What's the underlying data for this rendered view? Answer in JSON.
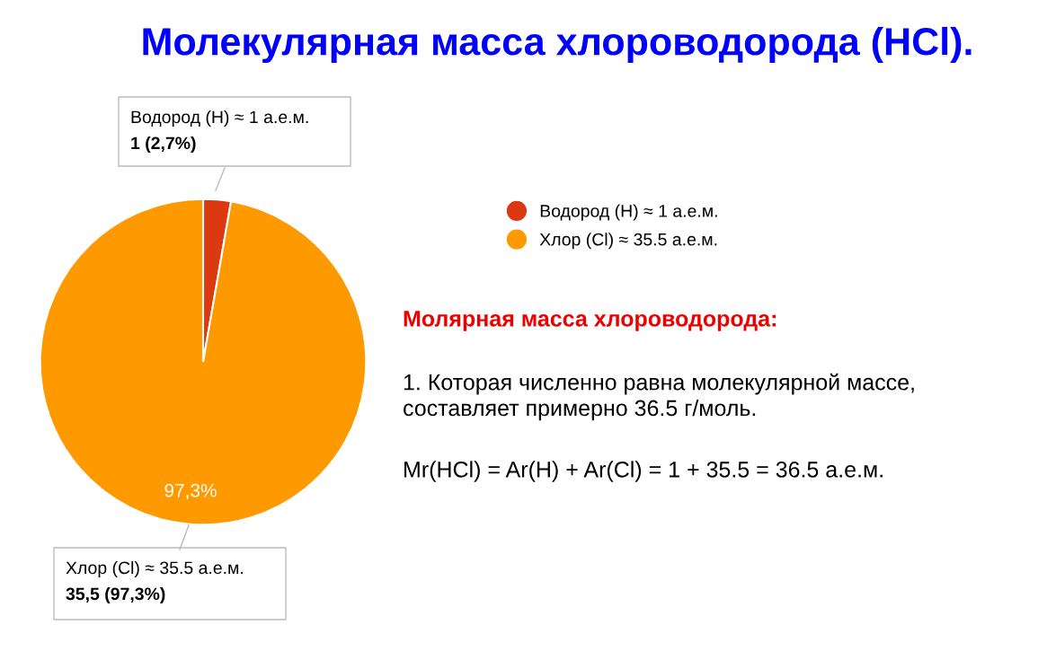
{
  "chart_data": {
    "type": "pie",
    "title": "Молекулярная масса хлороводорода (HCl).",
    "categories": [
      "Водород (H) ≈ 1 а.е.м.",
      "Хлор (Cl) ≈ 35.5 а.е.м."
    ],
    "values": [
      1,
      35.5
    ],
    "colors": [
      "#dc3912",
      "#ff9900"
    ],
    "value_labels": [
      "1 (2,7%)",
      "35,5 (97,3%)"
    ],
    "legend": "right",
    "annotations": [
      "97,3%",
      "Молярная масса хлороводорода:",
      "1. Которая численно равна молекулярной массе,\nсоставляет примерно 36.5 г/моль.",
      "Mr(HCl) = Ar(H) + Ar(Cl) = 1 + 35.5 = 36.5 а.е.м."
    ]
  }
}
